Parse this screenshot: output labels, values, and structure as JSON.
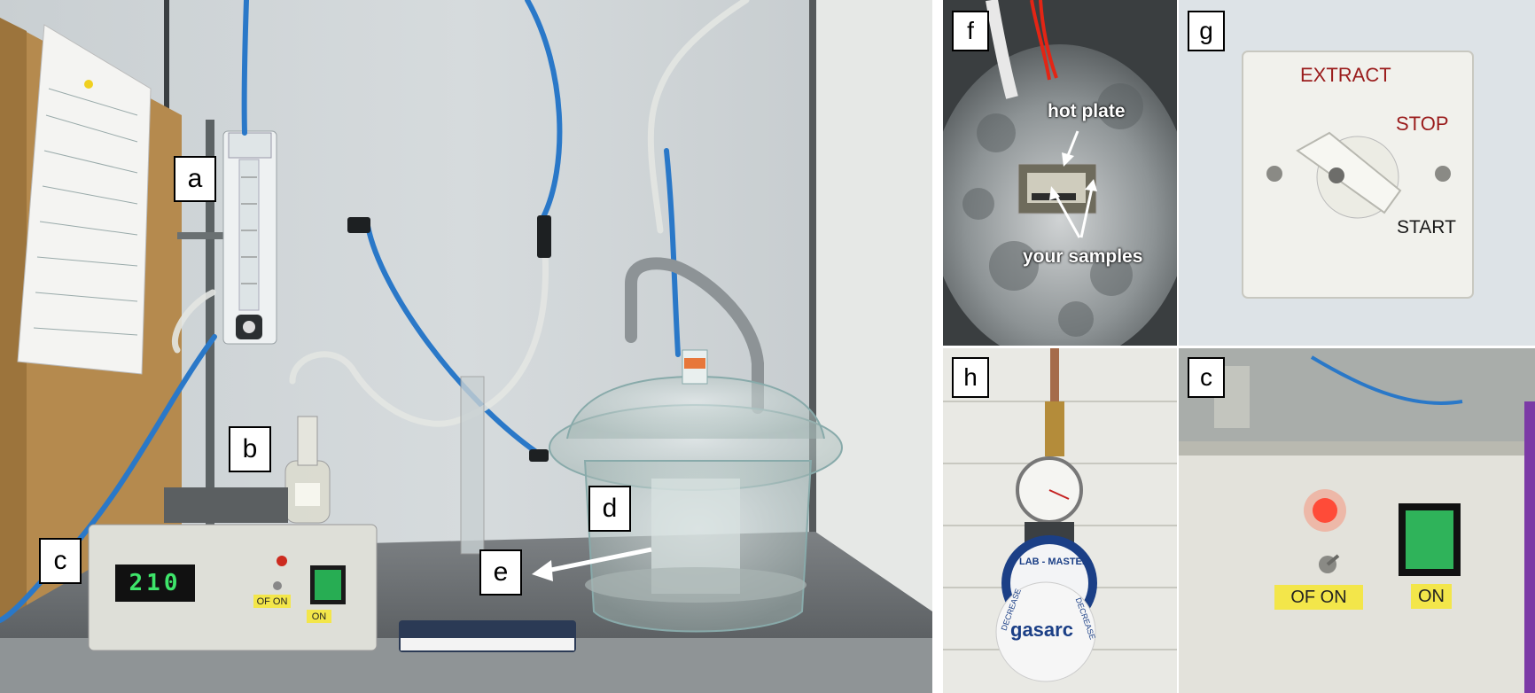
{
  "panels": {
    "main": {
      "labels": {
        "a": "a",
        "b": "b",
        "c": "c",
        "d": "d",
        "e": "e"
      },
      "display_value": "210",
      "switch_labels": {
        "toggle": "OF ON",
        "on": "ON"
      }
    },
    "f": {
      "label": "f",
      "hot_plate": "hot plate",
      "samples": "your samples"
    },
    "g": {
      "label": "g",
      "extract": "EXTRACT",
      "stop": "STOP",
      "start": "START"
    },
    "h": {
      "label": "h",
      "regulator_ring": "LAB - MASTER",
      "brand": "gasarc",
      "decrease_left": "DECREASE",
      "decrease_right": "DECREASE"
    },
    "c2": {
      "label": "c",
      "toggle": "OF ON",
      "on": "ON"
    }
  },
  "colors": {
    "label_bg": "#ffffff",
    "tape_yellow": "#f3e64a",
    "tubing_blue": "#2a78c8",
    "button_green": "#2fb35a",
    "led_red": "#ff3b2f",
    "sign_red": "#9a1c1c"
  }
}
